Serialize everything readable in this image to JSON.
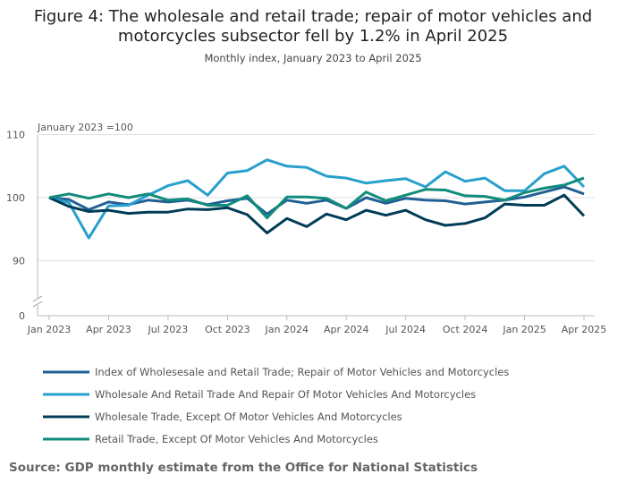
{
  "chart_data": {
    "type": "line",
    "title_lines": [
      "Figure 4: The wholesale and retail trade; repair of motor vehicles and",
      "motorcycles subsector fell by 1.2% in April 2025"
    ],
    "subtitle": "Monthly index, January 2023 to April 2025",
    "ylabel": "January 2023 =100",
    "ylim": [
      90,
      110
    ],
    "yticks": [
      "110",
      "100",
      "90",
      "0"
    ],
    "axis_break": true,
    "xtick_labels": [
      "Jan 2023",
      "Apr 2023",
      "Jul 2023",
      "Oct 2023",
      "Jan 2024",
      "Apr 2024",
      "Jul 2024",
      "Oct 2024",
      "Jan 2025",
      "Apr 2025"
    ],
    "x_months_count": 28,
    "grid": true,
    "legend_position": "bottom",
    "series": [
      {
        "name": "Index of Wholesesale and Retail Trade; Repair of Motor Vehicles and Motorcycles",
        "color": "#206095",
        "values": [
          100,
          99.7,
          98.1,
          99.3,
          98.9,
          99.6,
          99.3,
          99.6,
          98.9,
          99.5,
          99.9,
          97.4,
          99.6,
          99.1,
          99.6,
          98.3,
          100,
          99.1,
          99.9,
          99.6,
          99.5,
          99,
          99.3,
          99.6,
          100.1,
          100.9,
          101.7,
          100.6
        ]
      },
      {
        "name": "Wholesale And Retail Trade And Repair Of Motor Vehicles And Motorcycles",
        "color": "#27a0cc",
        "values": [
          100,
          99.2,
          93.6,
          98.7,
          98.8,
          100.4,
          101.9,
          102.7,
          100.4,
          103.9,
          104.3,
          106,
          105,
          104.8,
          103.4,
          103.1,
          102.3,
          102.7,
          103,
          101.7,
          104.1,
          102.6,
          103.1,
          101.1,
          101.1,
          103.8,
          105,
          101.7
        ]
      },
      {
        "name": "Wholesale Trade, Except Of Motor Vehicles And Motorcycles",
        "color": "#003c57",
        "values": [
          100,
          98.6,
          97.8,
          98,
          97.5,
          97.7,
          97.7,
          98.2,
          98.1,
          98.4,
          97.3,
          94.4,
          96.7,
          95.4,
          97.4,
          96.5,
          98,
          97.2,
          98,
          96.5,
          95.6,
          95.9,
          96.8,
          99,
          98.8,
          98.8,
          100.4,
          97.1
        ]
      },
      {
        "name": "Retail Trade, Except Of Motor Vehicles And Motorcycles",
        "color": "#118c7b",
        "values": [
          100,
          100.6,
          99.9,
          100.6,
          100,
          100.6,
          99.6,
          99.8,
          98.8,
          98.8,
          100.3,
          96.8,
          100.1,
          100.1,
          99.9,
          98.3,
          100.9,
          99.5,
          100.4,
          101.3,
          101.2,
          100.3,
          100.2,
          99.6,
          100.8,
          101.5,
          102,
          103.1
        ]
      }
    ]
  },
  "source": "Source: GDP monthly estimate from the Office for National Statistics"
}
